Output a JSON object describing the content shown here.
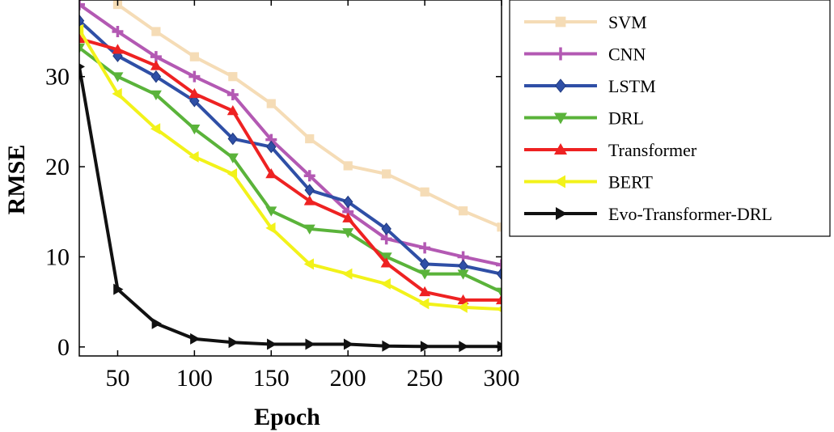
{
  "chart_data": {
    "type": "line",
    "title": "",
    "xlabel": "Epoch",
    "ylabel": "RMSE",
    "xlim": [
      25,
      300
    ],
    "ylim": [
      -1,
      38.5
    ],
    "xticks": [
      50,
      100,
      150,
      200,
      250,
      300
    ],
    "yticks": [
      0,
      10,
      20,
      30
    ],
    "x": [
      25,
      50,
      75,
      100,
      125,
      150,
      175,
      200,
      225,
      250,
      275,
      300
    ],
    "legend_position": "top-right outside",
    "series": [
      {
        "name": "SVM",
        "color": "#f5dcb6",
        "marker": "square",
        "x": [
          50,
          75,
          100,
          125,
          150,
          175,
          200,
          225,
          250,
          275,
          300
        ],
        "values": [
          38,
          35,
          32.2,
          30,
          27,
          23.1,
          20.1,
          19.2,
          17.2,
          15.1,
          13.3
        ]
      },
      {
        "name": "CNN",
        "color": "#b359b3",
        "marker": "plus",
        "x": [
          25,
          50,
          75,
          100,
          125,
          150,
          175,
          200,
          225,
          250,
          275,
          300
        ],
        "values": [
          38,
          35,
          32.2,
          30,
          28,
          23,
          19,
          15,
          12,
          11,
          10,
          9.1
        ]
      },
      {
        "name": "LSTM",
        "color": "#2f4fa6",
        "marker": "diamond",
        "x": [
          25,
          50,
          75,
          100,
          125,
          150,
          175,
          200,
          225,
          250,
          275,
          300
        ],
        "values": [
          36.2,
          32.3,
          30,
          27.3,
          23.1,
          22.2,
          17.4,
          16.1,
          13.1,
          9.2,
          9,
          8.1
        ]
      },
      {
        "name": "DRL",
        "color": "#5ab33a",
        "marker": "triangle-down",
        "x": [
          25,
          50,
          75,
          100,
          125,
          150,
          175,
          200,
          225,
          250,
          275,
          300
        ],
        "values": [
          33.2,
          30,
          28,
          24.2,
          21,
          15.1,
          13.1,
          12.7,
          10,
          8.1,
          8.1,
          6.1
        ]
      },
      {
        "name": "Transformer",
        "color": "#ee2222",
        "marker": "triangle-up",
        "x": [
          25,
          50,
          75,
          100,
          125,
          150,
          175,
          200,
          225,
          250,
          275,
          300
        ],
        "values": [
          34.2,
          33,
          31.2,
          28.1,
          26.2,
          19.2,
          16.2,
          14.3,
          9.3,
          6.1,
          5.2,
          5.2
        ]
      },
      {
        "name": "BERT",
        "color": "#f2f21a",
        "marker": "triangle-left",
        "x": [
          25,
          50,
          75,
          100,
          125,
          150,
          175,
          200,
          225,
          250,
          275,
          300
        ],
        "values": [
          35.2,
          28.1,
          24.2,
          21.1,
          19.2,
          13.2,
          9.2,
          8.1,
          7,
          4.8,
          4.4,
          4.2
        ]
      },
      {
        "name": "Evo-Transformer-DRL",
        "color": "#111111",
        "marker": "triangle-right",
        "x": [
          25,
          50,
          75,
          100,
          125,
          150,
          175,
          200,
          225,
          250,
          275,
          300
        ],
        "values": [
          31.1,
          6.4,
          2.6,
          0.9,
          0.5,
          0.3,
          0.3,
          0.3,
          0.1,
          0.05,
          0.05,
          0.05
        ]
      }
    ]
  }
}
